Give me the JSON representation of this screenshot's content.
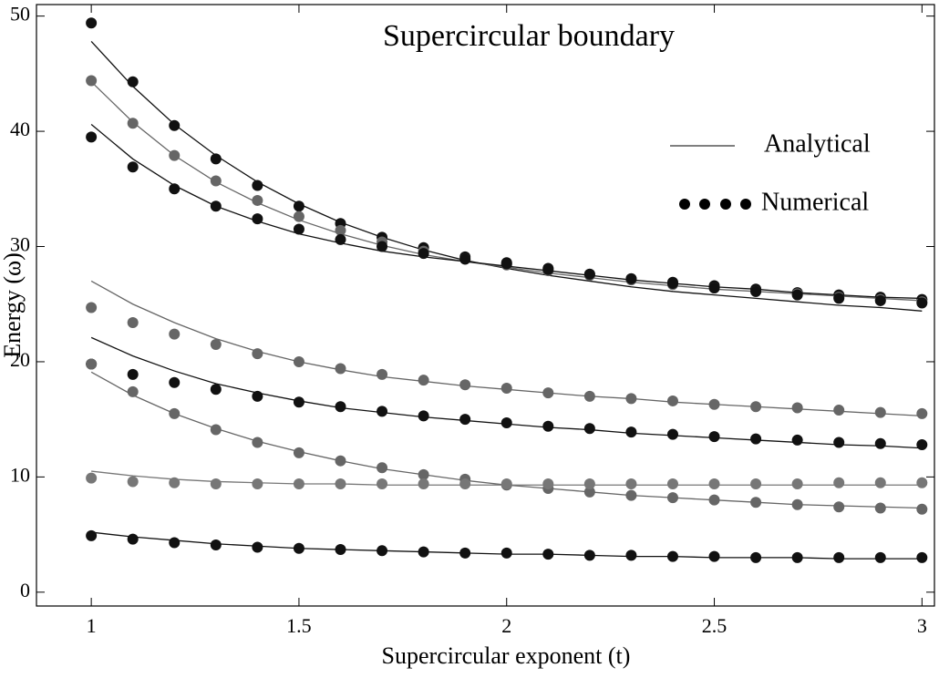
{
  "chart_data": {
    "type": "line",
    "title": "Supercircular boundary",
    "x_label": "Supercircular exponent (t)",
    "y_label": "Energy (ω)",
    "legend": {
      "corner": "upper right",
      "entries": [
        {
          "label": "Analytical",
          "style": "line"
        },
        {
          "label": "Numerical",
          "style": "dots"
        }
      ]
    },
    "x": [
      1,
      1.1,
      1.2,
      1.3,
      1.4,
      1.5,
      1.6,
      1.7,
      1.8,
      1.9,
      2,
      2.1,
      2.2,
      2.3,
      2.4,
      2.5,
      2.6,
      2.7,
      2.8,
      2.9,
      3
    ],
    "xlim": [
      0.868,
      3.03
    ],
    "xticks": [
      1,
      1.5,
      2,
      2.5,
      3
    ],
    "ylim": [
      -1.2,
      51
    ],
    "yticks": [
      0,
      10,
      20,
      30,
      40,
      50
    ],
    "grid": false,
    "series": [
      {
        "color": "#111111",
        "numerical": [
          49.4,
          44.3,
          40.5,
          37.6,
          35.3,
          33.5,
          32.0,
          30.8,
          29.9,
          29.1,
          28.6,
          28.1,
          27.6,
          27.2,
          26.9,
          26.6,
          26.3,
          26.0,
          25.8,
          25.6,
          25.4
        ],
        "analytical": [
          47.8,
          43.9,
          40.6,
          37.9,
          35.6,
          33.7,
          32.1,
          30.8,
          29.7,
          28.8,
          28.1,
          27.5,
          27.0,
          26.5,
          26.1,
          25.8,
          25.5,
          25.2,
          24.9,
          24.7,
          24.4
        ]
      },
      {
        "color": "#666666",
        "numerical": [
          44.4,
          40.7,
          37.9,
          35.7,
          34.0,
          32.6,
          31.4,
          30.4,
          29.6,
          28.9,
          28.4,
          27.9,
          27.5,
          27.1,
          26.7,
          26.4,
          26.1,
          25.9,
          25.6,
          25.4,
          25.2
        ],
        "analytical": [
          44.3,
          40.8,
          37.9,
          35.6,
          33.8,
          32.3,
          31.1,
          30.1,
          29.3,
          28.7,
          28.2,
          27.7,
          27.3,
          26.9,
          26.6,
          26.3,
          26.1,
          25.9,
          25.7,
          25.5,
          25.3
        ]
      },
      {
        "color": "#111111",
        "numerical": [
          39.5,
          36.9,
          35.0,
          33.5,
          32.4,
          31.5,
          30.6,
          30.0,
          29.4,
          28.9,
          28.5,
          28.0,
          27.6,
          27.2,
          26.8,
          26.4,
          26.1,
          25.8,
          25.5,
          25.3,
          25.1
        ],
        "analytical": [
          40.6,
          37.6,
          35.3,
          33.5,
          32.2,
          31.1,
          30.3,
          29.6,
          29.1,
          28.7,
          28.3,
          27.9,
          27.5,
          27.1,
          26.8,
          26.5,
          26.3,
          26.0,
          25.8,
          25.6,
          25.5
        ]
      },
      {
        "color": "#666666",
        "numerical": [
          24.7,
          23.4,
          22.4,
          21.5,
          20.7,
          20.0,
          19.4,
          18.9,
          18.4,
          18.0,
          17.7,
          17.3,
          17.0,
          16.8,
          16.6,
          16.3,
          16.1,
          16.0,
          15.8,
          15.6,
          15.5
        ],
        "analytical": [
          27.0,
          25.0,
          23.4,
          22.0,
          20.9,
          20.0,
          19.3,
          18.7,
          18.3,
          17.9,
          17.6,
          17.3,
          17.0,
          16.8,
          16.5,
          16.3,
          16.1,
          15.9,
          15.7,
          15.5,
          15.3
        ]
      },
      {
        "color": "#111111",
        "numerical": [
          19.8,
          18.9,
          18.2,
          17.6,
          17.0,
          16.5,
          16.1,
          15.7,
          15.3,
          15.0,
          14.7,
          14.4,
          14.2,
          13.9,
          13.7,
          13.5,
          13.3,
          13.2,
          13.0,
          12.9,
          12.8
        ],
        "analytical": [
          22.1,
          20.5,
          19.2,
          18.1,
          17.3,
          16.6,
          16.0,
          15.6,
          15.2,
          14.9,
          14.6,
          14.3,
          14.1,
          13.8,
          13.6,
          13.4,
          13.2,
          13.0,
          12.8,
          12.7,
          12.5
        ]
      },
      {
        "color": "#666666",
        "numerical": [
          19.8,
          17.4,
          15.5,
          14.1,
          13.0,
          12.1,
          11.4,
          10.8,
          10.2,
          9.8,
          9.3,
          9.0,
          8.7,
          8.4,
          8.2,
          8.0,
          7.8,
          7.6,
          7.4,
          7.3,
          7.2
        ],
        "analytical": [
          19.1,
          17.1,
          15.5,
          14.2,
          13.1,
          12.2,
          11.4,
          10.7,
          10.2,
          9.7,
          9.3,
          9.0,
          8.7,
          8.4,
          8.2,
          8.0,
          7.8,
          7.6,
          7.5,
          7.4,
          7.3
        ]
      },
      {
        "color": "#777777",
        "numerical": [
          9.9,
          9.6,
          9.5,
          9.4,
          9.4,
          9.4,
          9.4,
          9.4,
          9.4,
          9.4,
          9.4,
          9.4,
          9.4,
          9.4,
          9.4,
          9.4,
          9.4,
          9.4,
          9.5,
          9.5,
          9.5
        ],
        "analytical": [
          10.5,
          10.1,
          9.8,
          9.6,
          9.5,
          9.4,
          9.4,
          9.3,
          9.3,
          9.3,
          9.3,
          9.3,
          9.3,
          9.3,
          9.3,
          9.3,
          9.3,
          9.3,
          9.3,
          9.3,
          9.3
        ]
      },
      {
        "color": "#111111",
        "numerical": [
          4.9,
          4.6,
          4.3,
          4.1,
          3.9,
          3.8,
          3.7,
          3.6,
          3.5,
          3.4,
          3.4,
          3.3,
          3.2,
          3.2,
          3.1,
          3.1,
          3.0,
          3.0,
          3.0,
          3.0,
          3.0
        ],
        "analytical": [
          5.2,
          4.8,
          4.5,
          4.2,
          4.0,
          3.8,
          3.7,
          3.6,
          3.5,
          3.4,
          3.3,
          3.3,
          3.2,
          3.1,
          3.1,
          3.0,
          3.0,
          3.0,
          2.9,
          2.9,
          2.9
        ]
      }
    ]
  }
}
